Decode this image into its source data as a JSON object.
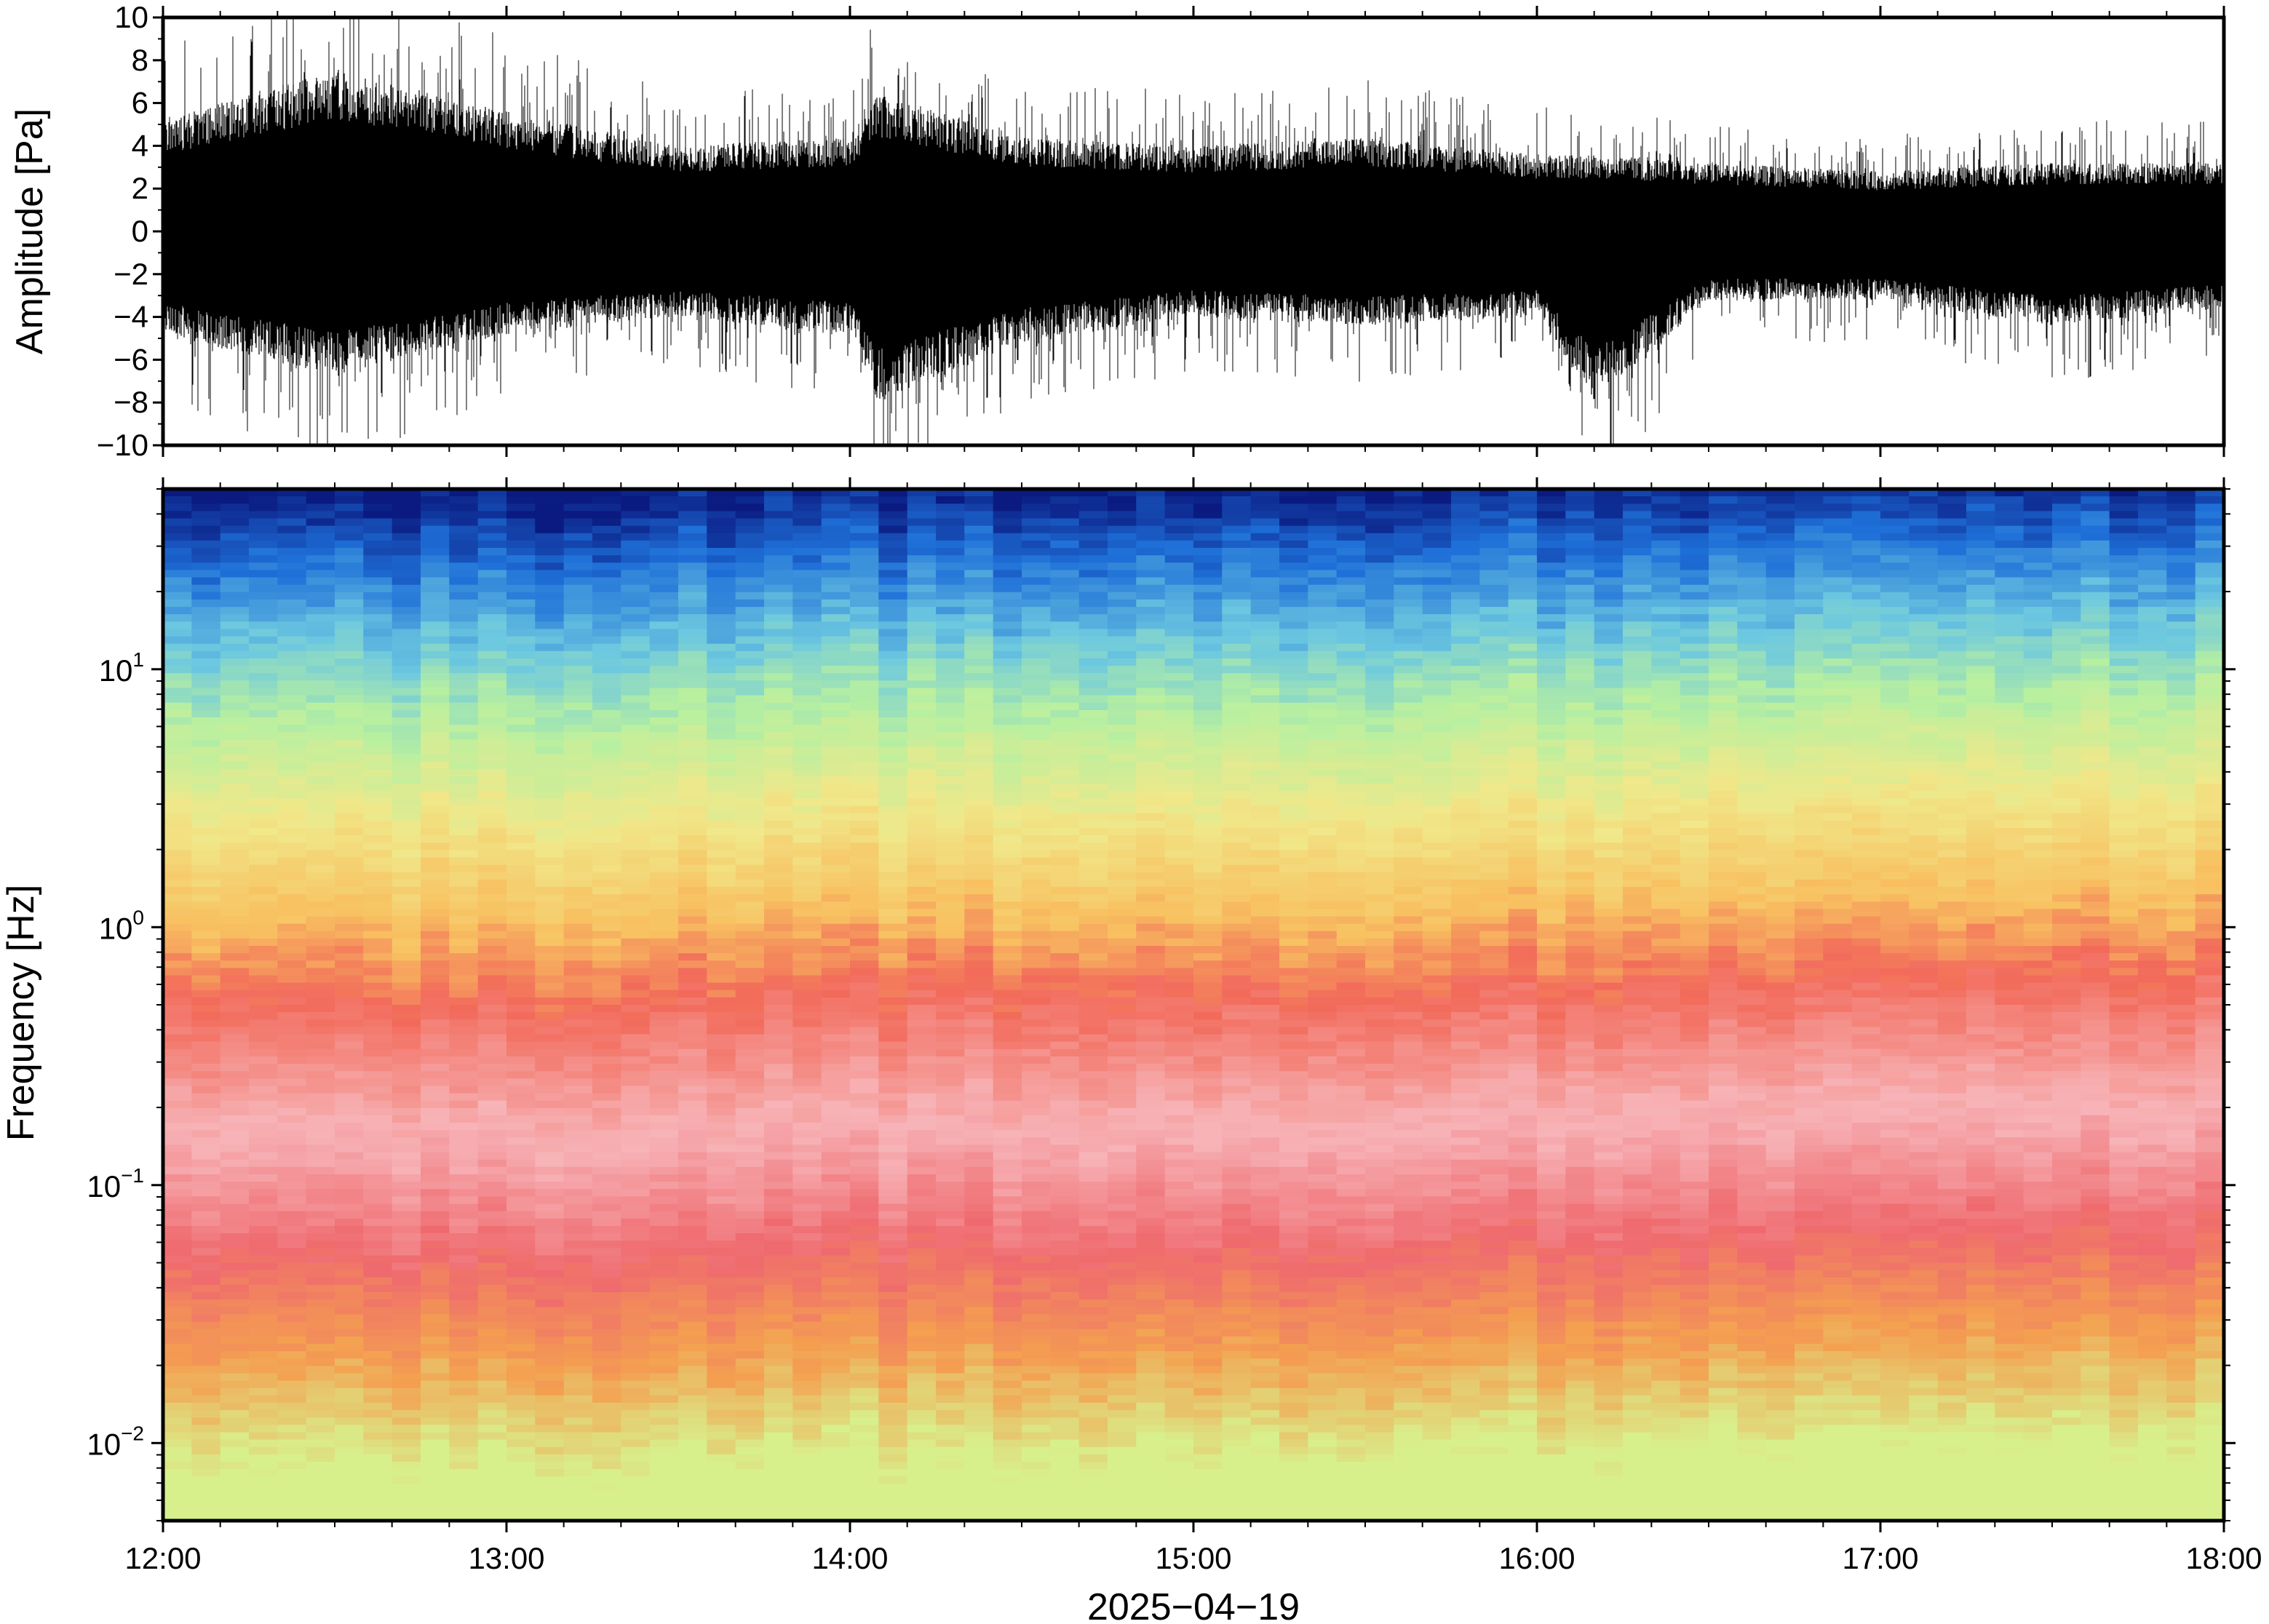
{
  "chart_data": [
    {
      "type": "line",
      "ylabel": "Amplitude [Pa]",
      "ylim": [
        -10,
        10
      ],
      "yticks": [
        "10",
        "8",
        "6",
        "4",
        "2",
        "0",
        "−2",
        "−4",
        "−6",
        "−8",
        "−10"
      ],
      "x_range": [
        "2025-04-19 12:00",
        "2025-04-19 18:00"
      ],
      "series": [
        {
          "envelope": [
            {
              "t": "12:00",
              "max": 6.5,
              "min": -6.0
            },
            {
              "t": "12:30",
              "max": 9.5,
              "min": -8.5
            },
            {
              "t": "13:00",
              "max": 7.0,
              "min": -6.0
            },
            {
              "t": "13:30",
              "max": 5.0,
              "min": -5.0
            },
            {
              "t": "14:00",
              "max": 5.5,
              "min": -6.0
            },
            {
              "t": "14:05",
              "max": 8.0,
              "min": -10.0
            },
            {
              "t": "14:30",
              "max": 5.5,
              "min": -6.5
            },
            {
              "t": "15:00",
              "max": 5.0,
              "min": -5.0
            },
            {
              "t": "15:30",
              "max": 5.5,
              "min": -5.5
            },
            {
              "t": "16:00",
              "max": 4.5,
              "min": -5.0
            },
            {
              "t": "16:10",
              "max": 4.5,
              "min": -10.0
            },
            {
              "t": "16:30",
              "max": 4.0,
              "min": -4.0
            },
            {
              "t": "17:00",
              "max": 3.5,
              "min": -4.0
            },
            {
              "t": "17:30",
              "max": 4.0,
              "min": -5.5
            },
            {
              "t": "18:00",
              "max": 4.0,
              "min": -4.5
            }
          ]
        }
      ],
      "grid": false
    },
    {
      "type": "heatmap",
      "ylabel": "Frequency [Hz]",
      "yscale": "log",
      "ylim": [
        0.005,
        50
      ],
      "yticks": [
        {
          "base": "10",
          "exp": "1"
        },
        {
          "base": "10",
          "exp": "0"
        },
        {
          "base": "10",
          "exp": "−1"
        },
        {
          "base": "10",
          "exp": "−2"
        }
      ],
      "xlabel": "2025−04−19",
      "xticks": [
        "12:00",
        "13:00",
        "14:00",
        "15:00",
        "16:00",
        "17:00",
        "18:00"
      ],
      "colormap": [
        "#0a1a80",
        "#1e5fd6",
        "#4aa8e8",
        "#7de0c8",
        "#cdf59a",
        "#f2e88a",
        "#f8b450",
        "#ee5a5a",
        "#f7c0c4"
      ],
      "band_profile": [
        {
          "freq_hz": 45,
          "color": "#0a1a80"
        },
        {
          "freq_hz": 25,
          "color": "#1e6fd8"
        },
        {
          "freq_hz": 12,
          "color": "#6cc8e0"
        },
        {
          "freq_hz": 6,
          "color": "#b8f0a0"
        },
        {
          "freq_hz": 2.5,
          "color": "#f0e88a"
        },
        {
          "freq_hz": 1.0,
          "color": "#f8c060"
        },
        {
          "freq_hz": 0.5,
          "color": "#f26a5a"
        },
        {
          "freq_hz": 0.15,
          "color": "#f7b4b8"
        },
        {
          "freq_hz": 0.05,
          "color": "#ef6a6e"
        },
        {
          "freq_hz": 0.02,
          "color": "#f4a050"
        },
        {
          "freq_hz": 0.008,
          "color": "#d8f08c"
        }
      ],
      "grid": false
    }
  ]
}
